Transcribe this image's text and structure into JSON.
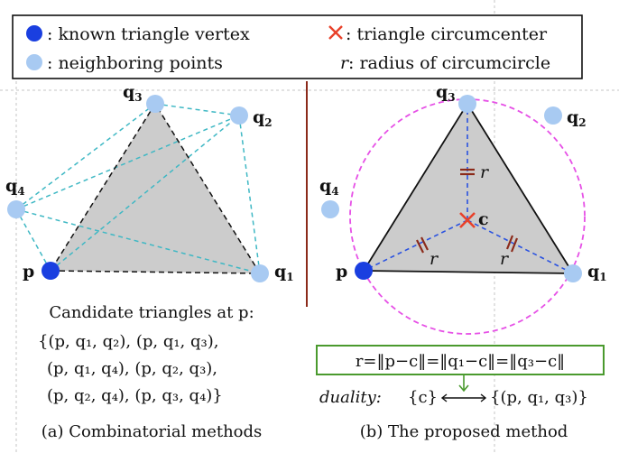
{
  "legend": {
    "known_vertex": ": known triangle vertex",
    "circumcenter": ": triangle circumcenter",
    "neighbors": ": neighboring points",
    "radius_symbol": "r",
    "radius": ": radius of circumcircle"
  },
  "left": {
    "points": {
      "q3": "q",
      "q3_sub": "3",
      "q2": "q",
      "q2_sub": "2",
      "q4": "q",
      "q4_sub": "4",
      "q1": "q",
      "q1_sub": "1",
      "p": "p"
    },
    "candidates_title": "Candidate triangles at p:",
    "candidates": [
      "{(p, q₁, q₂), (p, q₁, q₃),",
      "(p, q₁, q₄), (p, q₂, q₃),",
      "(p, q₂, q₄), (p, q₃, q₄)}"
    ],
    "caption": "(a) Combinatorial methods"
  },
  "right": {
    "points": {
      "q3": "q",
      "q3_sub": "3",
      "q2": "q",
      "q2_sub": "2",
      "q4": "q",
      "q4_sub": "4",
      "q1": "q",
      "q1_sub": "1",
      "p": "p",
      "c": "c"
    },
    "r_labels": [
      "r",
      "r",
      "r"
    ],
    "equation": "r=‖p−c‖=‖q₁−c‖=‖q₃−c‖",
    "duality_label": "duality:",
    "duality_left": "{c}",
    "duality_right": "{(p, q₁, q₃)}",
    "caption": "(b) The proposed method"
  },
  "colors": {
    "known_vertex": "#1a3fe0",
    "neighbor": "#a8caf2",
    "circumcenter": "#e8412a",
    "circle": "#e650e6",
    "candidate_edges": "#3fb8c4",
    "radius_lines": "#2a52e0",
    "triangle_fill": "#cccccc",
    "divider": "#8b2a1a",
    "equation_box": "#4a9a2e",
    "grid": "#b9b9b9"
  }
}
